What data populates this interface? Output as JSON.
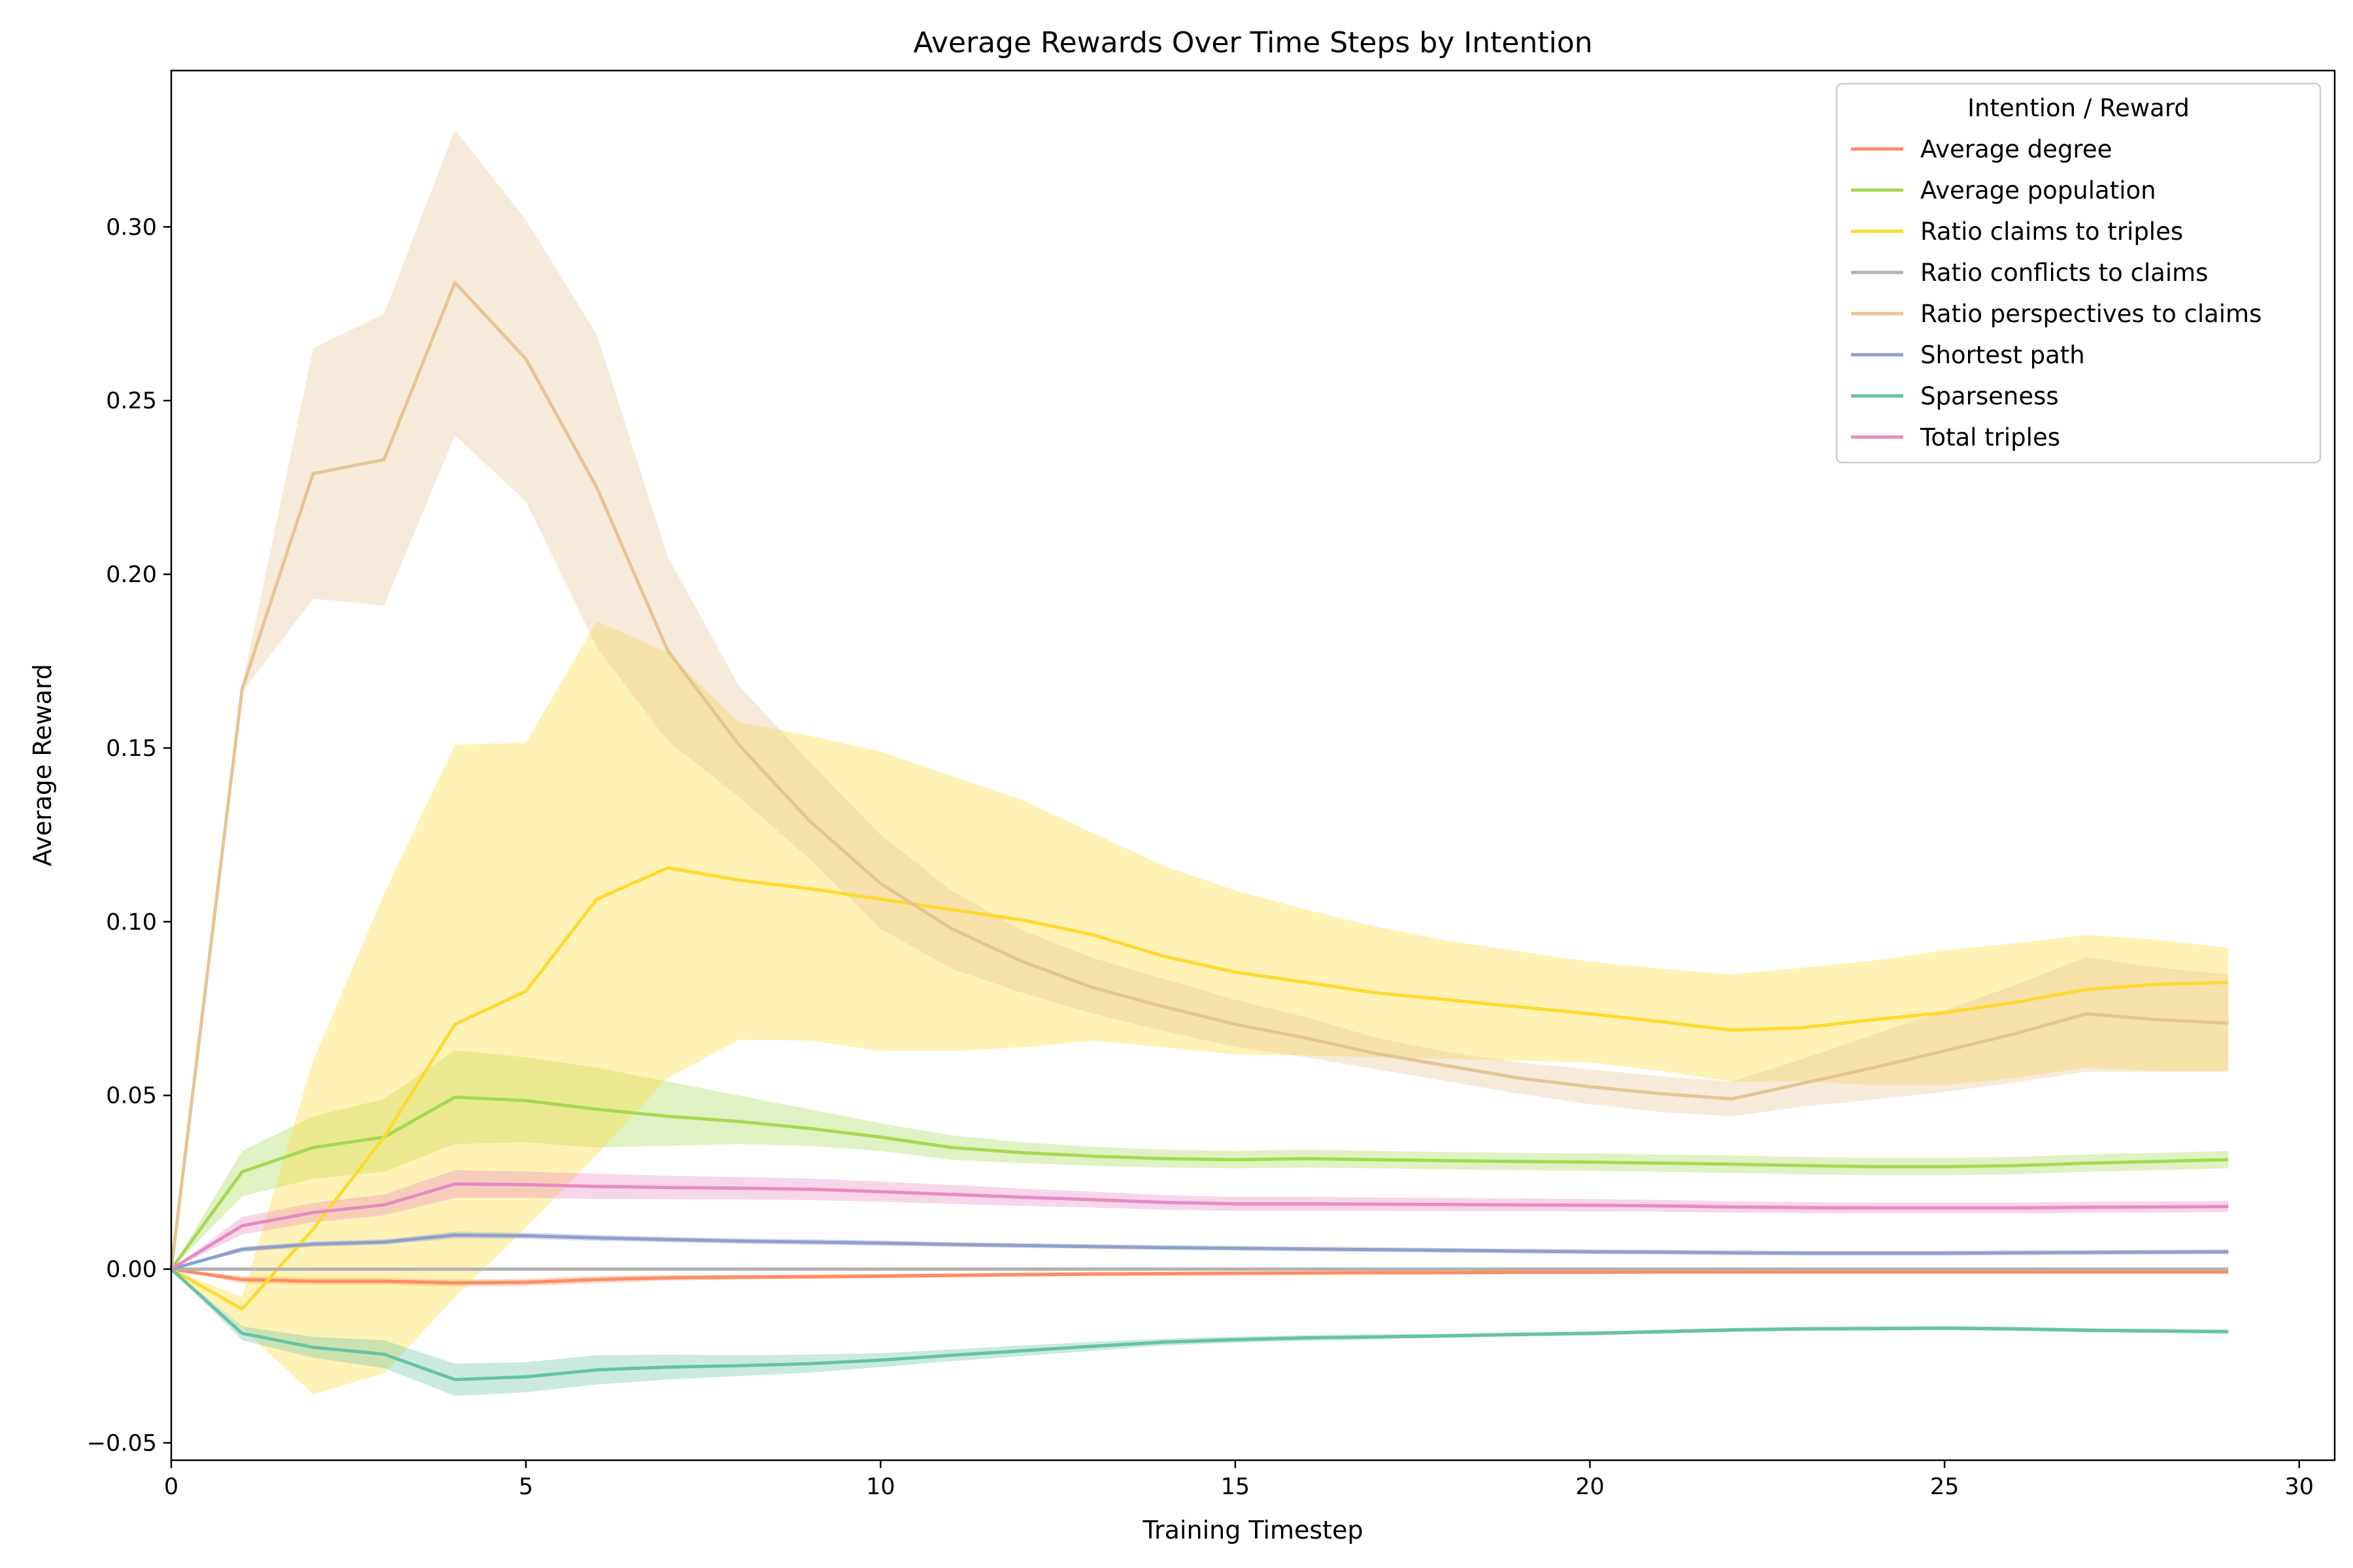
{
  "chart_data": {
    "type": "line",
    "title": "Average Rewards Over Time Steps by Intention",
    "xlabel": "Training Timestep",
    "ylabel": "Average Reward",
    "xlim": [
      0,
      30.5
    ],
    "ylim": [
      -0.055,
      0.345
    ],
    "xticks": [
      0,
      5,
      10,
      15,
      20,
      25,
      30
    ],
    "yticks": [
      -0.05,
      0.0,
      0.05,
      0.1,
      0.15,
      0.2,
      0.25,
      0.3
    ],
    "ytick_labels": [
      "−0.05",
      "0.00",
      "0.05",
      "0.10",
      "0.15",
      "0.20",
      "0.25",
      "0.30"
    ],
    "grid": false,
    "legend": {
      "title": "Intention / Reward",
      "placement": "top-right"
    },
    "x": [
      0,
      1,
      2,
      3,
      4,
      5,
      6,
      7,
      8,
      9,
      10,
      11,
      12,
      13,
      14,
      15,
      16,
      17,
      18,
      19,
      20,
      21,
      22,
      23,
      24,
      25,
      26,
      27,
      28,
      29
    ],
    "series": [
      {
        "name": "Average degree",
        "color": "#fc8d62",
        "values": [
          0,
          -0.003,
          -0.0035,
          -0.0035,
          -0.004,
          -0.0038,
          -0.003,
          -0.0025,
          -0.0023,
          -0.0022,
          -0.002,
          -0.0018,
          -0.0016,
          -0.0014,
          -0.0013,
          -0.0012,
          -0.0011,
          -0.001,
          -0.001,
          -0.0009,
          -0.0009,
          -0.0008,
          -0.0008,
          -0.0008,
          -0.0008,
          -0.0008,
          -0.0008,
          -0.0008,
          -0.0008,
          -0.0008
        ],
        "lower": [
          0,
          -0.004,
          -0.0045,
          -0.0045,
          -0.005,
          -0.0048,
          -0.004,
          -0.0033,
          -0.003,
          -0.0028,
          -0.0026,
          -0.0024,
          -0.0022,
          -0.002,
          -0.0019,
          -0.0018,
          -0.0017,
          -0.0016,
          -0.0016,
          -0.0015,
          -0.0015,
          -0.0014,
          -0.0014,
          -0.0014,
          -0.0014,
          -0.0014,
          -0.0014,
          -0.0014,
          -0.0014,
          -0.0014
        ],
        "upper": [
          0,
          -0.002,
          -0.0025,
          -0.0025,
          -0.003,
          -0.0028,
          -0.002,
          -0.0017,
          -0.0016,
          -0.0016,
          -0.0014,
          -0.0012,
          -0.001,
          -0.0008,
          -0.0007,
          -0.0006,
          -0.0005,
          -0.0004,
          -0.0004,
          -0.0003,
          -0.0003,
          -0.0002,
          -0.0002,
          -0.0002,
          -0.0002,
          -0.0002,
          -0.0002,
          -0.0002,
          -0.0002,
          -0.0002
        ]
      },
      {
        "name": "Average population",
        "color": "#a6d854",
        "values": [
          0,
          0.028,
          0.035,
          0.038,
          0.0495,
          0.0485,
          0.046,
          0.044,
          0.0425,
          0.0405,
          0.038,
          0.035,
          0.0335,
          0.0325,
          0.0318,
          0.0315,
          0.0318,
          0.0315,
          0.0312,
          0.031,
          0.0308,
          0.0305,
          0.0302,
          0.0298,
          0.0295,
          0.0295,
          0.0298,
          0.0305,
          0.031,
          0.0315
        ],
        "lower": [
          0,
          0.021,
          0.026,
          0.028,
          0.036,
          0.0365,
          0.035,
          0.0355,
          0.036,
          0.0355,
          0.034,
          0.0315,
          0.0305,
          0.0298,
          0.0292,
          0.029,
          0.0292,
          0.029,
          0.0287,
          0.0285,
          0.0283,
          0.028,
          0.0277,
          0.0273,
          0.027,
          0.027,
          0.0273,
          0.028,
          0.0285,
          0.029
        ],
        "upper": [
          0,
          0.034,
          0.044,
          0.049,
          0.063,
          0.061,
          0.058,
          0.054,
          0.05,
          0.046,
          0.042,
          0.0385,
          0.0365,
          0.0352,
          0.0344,
          0.034,
          0.0344,
          0.034,
          0.0337,
          0.0335,
          0.0333,
          0.033,
          0.0327,
          0.0323,
          0.032,
          0.032,
          0.0323,
          0.033,
          0.0335,
          0.034
        ]
      },
      {
        "name": "Ratio claims to triples",
        "color": "#ffd92f",
        "values": [
          0,
          -0.0115,
          0.0115,
          0.038,
          0.0705,
          0.08,
          0.1065,
          0.1155,
          0.112,
          0.1095,
          0.1065,
          0.1035,
          0.1005,
          0.0962,
          0.09,
          0.0855,
          0.0825,
          0.0795,
          0.0775,
          0.0755,
          0.0735,
          0.0712,
          0.0688,
          0.0695,
          0.0718,
          0.0738,
          0.0768,
          0.0805,
          0.082,
          0.0825
        ],
        "lower": [
          0,
          -0.017,
          -0.036,
          -0.03,
          -0.008,
          0.012,
          0.033,
          0.055,
          0.066,
          0.0658,
          0.0628,
          0.0628,
          0.0638,
          0.0658,
          0.0638,
          0.0618,
          0.0615,
          0.061,
          0.0605,
          0.06,
          0.0595,
          0.057,
          0.054,
          0.054,
          0.053,
          0.053,
          0.055,
          0.058,
          0.057,
          0.057
        ],
        "upper": [
          0,
          -0.008,
          0.06,
          0.108,
          0.151,
          0.1515,
          0.1865,
          0.1775,
          0.1575,
          0.1535,
          0.149,
          0.142,
          0.135,
          0.1255,
          0.116,
          0.109,
          0.1035,
          0.0985,
          0.0945,
          0.0915,
          0.0885,
          0.0865,
          0.0848,
          0.0868,
          0.0888,
          0.0918,
          0.0938,
          0.0962,
          0.0948,
          0.0925
        ]
      },
      {
        "name": "Ratio conflicts to claims",
        "color": "#b3b3b3",
        "values": [
          0,
          0,
          0,
          0,
          0,
          0,
          0,
          0,
          0,
          0,
          0,
          0,
          0,
          0,
          0,
          0,
          0,
          0,
          0,
          0,
          0,
          0,
          0,
          0,
          0,
          0,
          0,
          0,
          0,
          0
        ],
        "lower": [
          0,
          -0.0002,
          -0.0002,
          -0.0002,
          -0.0002,
          -0.0002,
          -0.0002,
          -0.0002,
          -0.0002,
          -0.0002,
          -0.0002,
          -0.0002,
          -0.0002,
          -0.0002,
          -0.0002,
          -0.0002,
          -0.0002,
          -0.0002,
          -0.0002,
          -0.0002,
          -0.0002,
          -0.0002,
          -0.0002,
          -0.0002,
          -0.0002,
          -0.0002,
          -0.0002,
          -0.0002,
          -0.0002,
          -0.0002
        ],
        "upper": [
          0,
          0.0002,
          0.0002,
          0.0002,
          0.0002,
          0.0002,
          0.0002,
          0.0002,
          0.0002,
          0.0002,
          0.0002,
          0.0002,
          0.0002,
          0.0002,
          0.0002,
          0.0002,
          0.0002,
          0.0002,
          0.0002,
          0.0002,
          0.0002,
          0.0002,
          0.0002,
          0.0002,
          0.0002,
          0.0002,
          0.0002,
          0.0002,
          0.0002,
          0.0002
        ]
      },
      {
        "name": "Ratio perspectives to claims",
        "color": "#e5c494",
        "values": [
          0,
          0.167,
          0.229,
          0.233,
          0.284,
          0.262,
          0.225,
          0.178,
          0.151,
          0.129,
          0.111,
          0.098,
          0.0885,
          0.081,
          0.0755,
          0.0705,
          0.0665,
          0.062,
          0.0585,
          0.055,
          0.0525,
          0.0505,
          0.049,
          0.0535,
          0.058,
          0.0628,
          0.0678,
          0.0735,
          0.0718,
          0.0708
        ],
        "lower": [
          0,
          0.166,
          0.193,
          0.191,
          0.24,
          0.221,
          0.179,
          0.152,
          0.136,
          0.118,
          0.098,
          0.0865,
          0.0795,
          0.0735,
          0.0685,
          0.064,
          0.061,
          0.0575,
          0.054,
          0.0505,
          0.0475,
          0.0452,
          0.044,
          0.0468,
          0.0488,
          0.051,
          0.0538,
          0.0568,
          0.0568,
          0.0568
        ],
        "upper": [
          0,
          0.168,
          0.265,
          0.275,
          0.328,
          0.302,
          0.269,
          0.205,
          0.168,
          0.146,
          0.125,
          0.109,
          0.0975,
          0.0895,
          0.0835,
          0.0775,
          0.0725,
          0.0665,
          0.0625,
          0.0595,
          0.0575,
          0.0555,
          0.054,
          0.0605,
          0.0675,
          0.0745,
          0.0818,
          0.0898,
          0.0868,
          0.0848
        ]
      },
      {
        "name": "Shortest path",
        "color": "#8da0cb",
        "values": [
          0,
          0.0057,
          0.0072,
          0.0078,
          0.0098,
          0.0096,
          0.009,
          0.0085,
          0.0081,
          0.0078,
          0.0075,
          0.0071,
          0.0068,
          0.0065,
          0.0062,
          0.006,
          0.0058,
          0.0056,
          0.0054,
          0.0052,
          0.005,
          0.0049,
          0.0047,
          0.0046,
          0.0046,
          0.0046,
          0.0047,
          0.0048,
          0.0049,
          0.005
        ],
        "lower": [
          0,
          0.0049,
          0.0064,
          0.007,
          0.0088,
          0.0087,
          0.0081,
          0.0077,
          0.0073,
          0.007,
          0.0067,
          0.0064,
          0.0061,
          0.0058,
          0.0055,
          0.0053,
          0.0051,
          0.0049,
          0.0047,
          0.0045,
          0.0043,
          0.0042,
          0.004,
          0.0039,
          0.0039,
          0.0039,
          0.004,
          0.0041,
          0.0042,
          0.0043
        ],
        "upper": [
          0,
          0.0065,
          0.008,
          0.0086,
          0.0108,
          0.0105,
          0.0099,
          0.0093,
          0.0089,
          0.0086,
          0.0083,
          0.0078,
          0.0075,
          0.0072,
          0.0069,
          0.0067,
          0.0065,
          0.0063,
          0.0061,
          0.0059,
          0.0057,
          0.0056,
          0.0054,
          0.0053,
          0.0053,
          0.0053,
          0.0054,
          0.0055,
          0.0056,
          0.0057
        ]
      },
      {
        "name": "Sparseness",
        "color": "#66c2a5",
        "values": [
          0,
          -0.0185,
          -0.0225,
          -0.0245,
          -0.0318,
          -0.031,
          -0.029,
          -0.0282,
          -0.0278,
          -0.0272,
          -0.0262,
          -0.0248,
          -0.0235,
          -0.0222,
          -0.021,
          -0.0203,
          -0.0198,
          -0.0195,
          -0.0192,
          -0.0188,
          -0.0185,
          -0.018,
          -0.0175,
          -0.0172,
          -0.0171,
          -0.017,
          -0.0172,
          -0.0176,
          -0.0178,
          -0.018
        ],
        "lower": [
          0,
          -0.0205,
          -0.0255,
          -0.0285,
          -0.0365,
          -0.0355,
          -0.0332,
          -0.0318,
          -0.0308,
          -0.0298,
          -0.0282,
          -0.0265,
          -0.025,
          -0.0235,
          -0.022,
          -0.0212,
          -0.0206,
          -0.0202,
          -0.0198,
          -0.0194,
          -0.0191,
          -0.0186,
          -0.0181,
          -0.0178,
          -0.0177,
          -0.0176,
          -0.0178,
          -0.0182,
          -0.0184,
          -0.0186
        ],
        "upper": [
          0,
          -0.0165,
          -0.0195,
          -0.0205,
          -0.0272,
          -0.0268,
          -0.0248,
          -0.0246,
          -0.0248,
          -0.0246,
          -0.0242,
          -0.0231,
          -0.022,
          -0.0209,
          -0.02,
          -0.0194,
          -0.019,
          -0.0188,
          -0.0186,
          -0.0182,
          -0.0179,
          -0.0174,
          -0.0169,
          -0.0166,
          -0.0165,
          -0.0164,
          -0.0166,
          -0.017,
          -0.0172,
          -0.0174
        ]
      },
      {
        "name": "Total triples",
        "color": "#e78ac3",
        "values": [
          0,
          0.0125,
          0.0163,
          0.0185,
          0.0245,
          0.0243,
          0.0238,
          0.0235,
          0.0233,
          0.023,
          0.0223,
          0.0215,
          0.0207,
          0.02,
          0.0192,
          0.0188,
          0.0188,
          0.0187,
          0.0186,
          0.0185,
          0.0184,
          0.0182,
          0.0179,
          0.0177,
          0.0176,
          0.0176,
          0.0176,
          0.0178,
          0.0179,
          0.018
        ],
        "lower": [
          0,
          0.01,
          0.0135,
          0.0155,
          0.0205,
          0.0205,
          0.0202,
          0.0201,
          0.0201,
          0.0199,
          0.0194,
          0.0188,
          0.0182,
          0.0177,
          0.0171,
          0.0168,
          0.0168,
          0.0168,
          0.0167,
          0.0167,
          0.0166,
          0.0165,
          0.0163,
          0.0161,
          0.016,
          0.016,
          0.016,
          0.0162,
          0.0163,
          0.0164
        ],
        "upper": [
          0,
          0.015,
          0.0191,
          0.0215,
          0.0285,
          0.0281,
          0.0274,
          0.0269,
          0.0265,
          0.0261,
          0.0252,
          0.0242,
          0.0232,
          0.0223,
          0.0213,
          0.0208,
          0.0208,
          0.0206,
          0.0205,
          0.0203,
          0.0202,
          0.0199,
          0.0195,
          0.0193,
          0.0192,
          0.0192,
          0.0192,
          0.0194,
          0.0195,
          0.0196
        ]
      }
    ]
  }
}
